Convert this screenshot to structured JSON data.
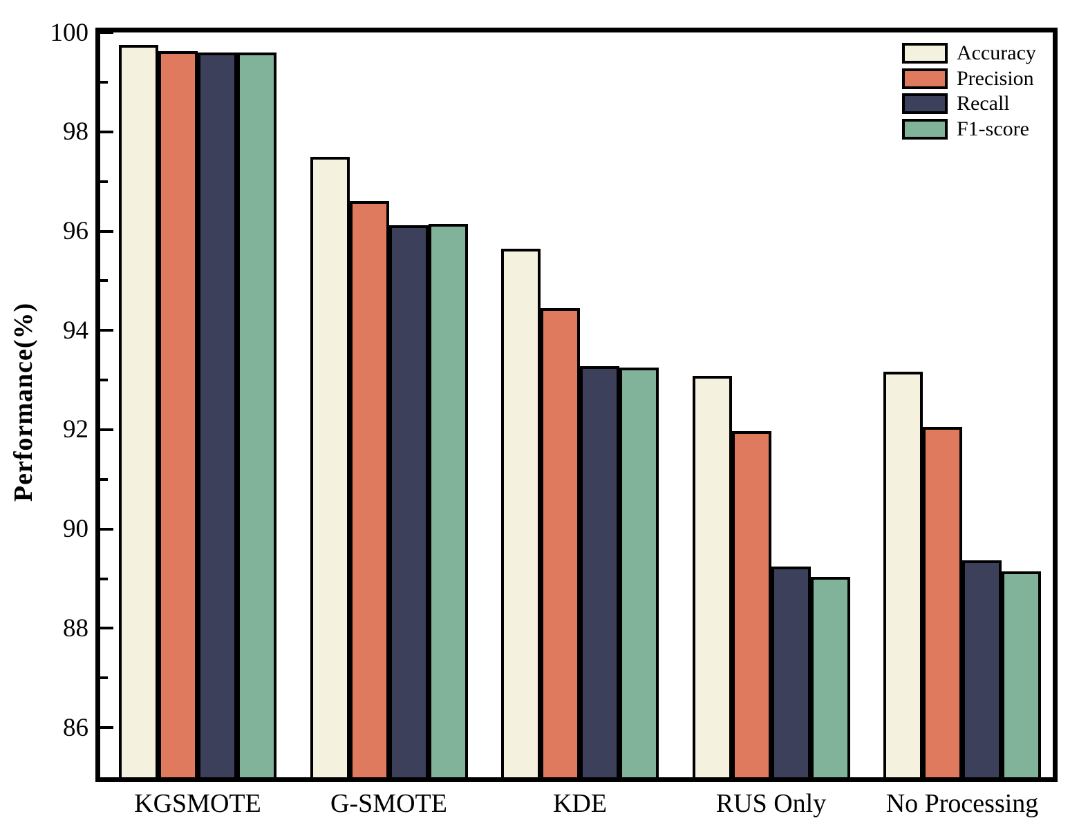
{
  "figure": {
    "background": "#ffffff",
    "axis_color": "#000000",
    "bar_edge_color": "#000000"
  },
  "chart_data": {
    "type": "bar",
    "title": "",
    "xlabel": "",
    "ylabel": "Performance(%)",
    "ylim": [
      85,
      100
    ],
    "grid": false,
    "legend_position": "top-right-inside",
    "yticks_major": [
      86,
      88,
      90,
      92,
      94,
      96,
      98,
      100
    ],
    "yticks_minor": [
      87,
      89,
      91,
      93,
      95,
      97,
      99
    ],
    "categories": [
      "KGSMOTE",
      "G-SMOTE",
      "KDE",
      "RUS Only",
      "No Processing"
    ],
    "series": [
      {
        "name": "Accuracy",
        "color": "#F4F1DE",
        "values": [
          99.75,
          97.5,
          95.65,
          93.08,
          93.17
        ]
      },
      {
        "name": "Precision",
        "color": "#E07A5F",
        "values": [
          99.62,
          96.6,
          94.45,
          91.97,
          92.05
        ]
      },
      {
        "name": "Recall",
        "color": "#3D405B",
        "values": [
          99.6,
          96.12,
          93.28,
          89.25,
          89.37
        ]
      },
      {
        "name": "F1-score",
        "color": "#81B29A",
        "values": [
          99.6,
          96.15,
          93.25,
          89.03,
          89.15
        ]
      }
    ]
  }
}
